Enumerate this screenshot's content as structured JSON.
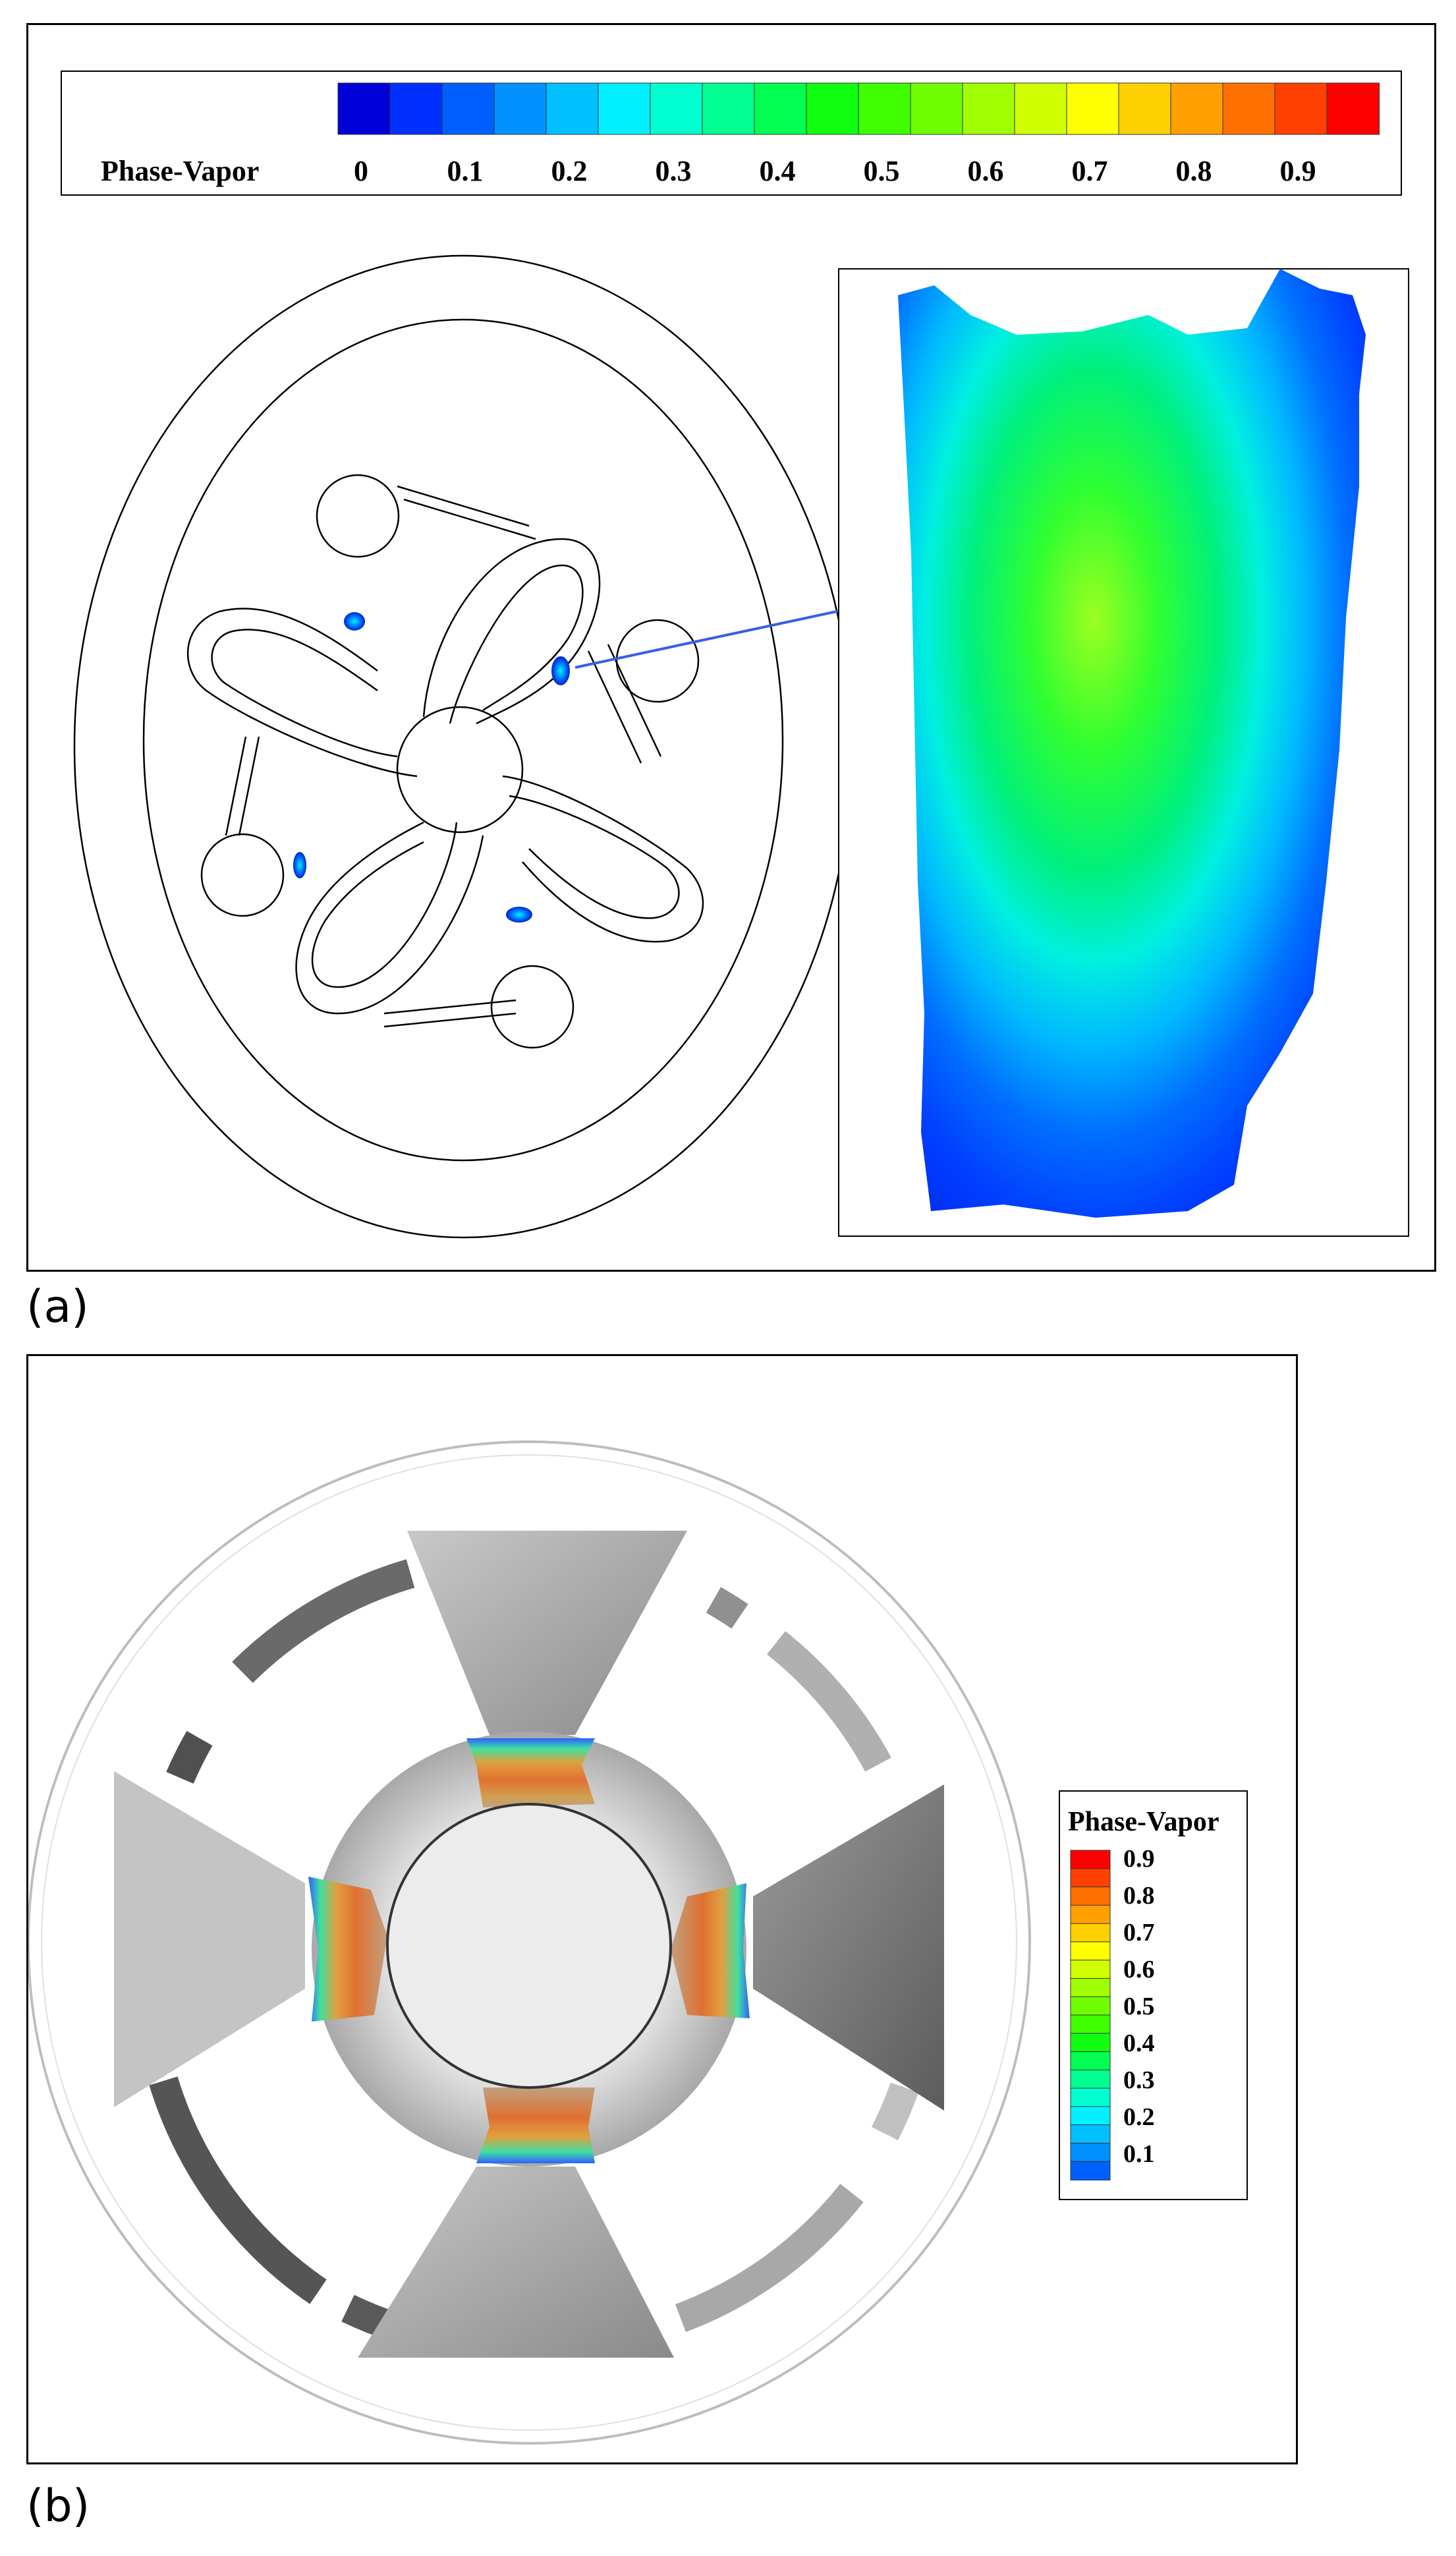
{
  "panel_a": {
    "label": "(a)",
    "legend": {
      "title": "Phase-Vapor",
      "ticks": [
        "0",
        "0.1",
        "0.2",
        "0.3",
        "0.4",
        "0.5",
        "0.6",
        "0.7",
        "0.8",
        "0.9"
      ]
    }
  },
  "panel_b": {
    "label": "(b)",
    "legend": {
      "title": "Phase-Vapor",
      "ticks": [
        "0.9",
        "0.8",
        "0.7",
        "0.6",
        "0.5",
        "0.4",
        "0.3",
        "0.2",
        "0.1"
      ]
    }
  },
  "colorscale": [
    "#0000d8",
    "#0030ff",
    "#0060ff",
    "#0090ff",
    "#00c0ff",
    "#00f0ff",
    "#00ffd0",
    "#00ff90",
    "#00ff50",
    "#10ff10",
    "#40ff00",
    "#70ff00",
    "#a0ff00",
    "#d0ff00",
    "#ffff00",
    "#ffd000",
    "#ffa000",
    "#ff7000",
    "#ff4000",
    "#ff0000"
  ]
}
